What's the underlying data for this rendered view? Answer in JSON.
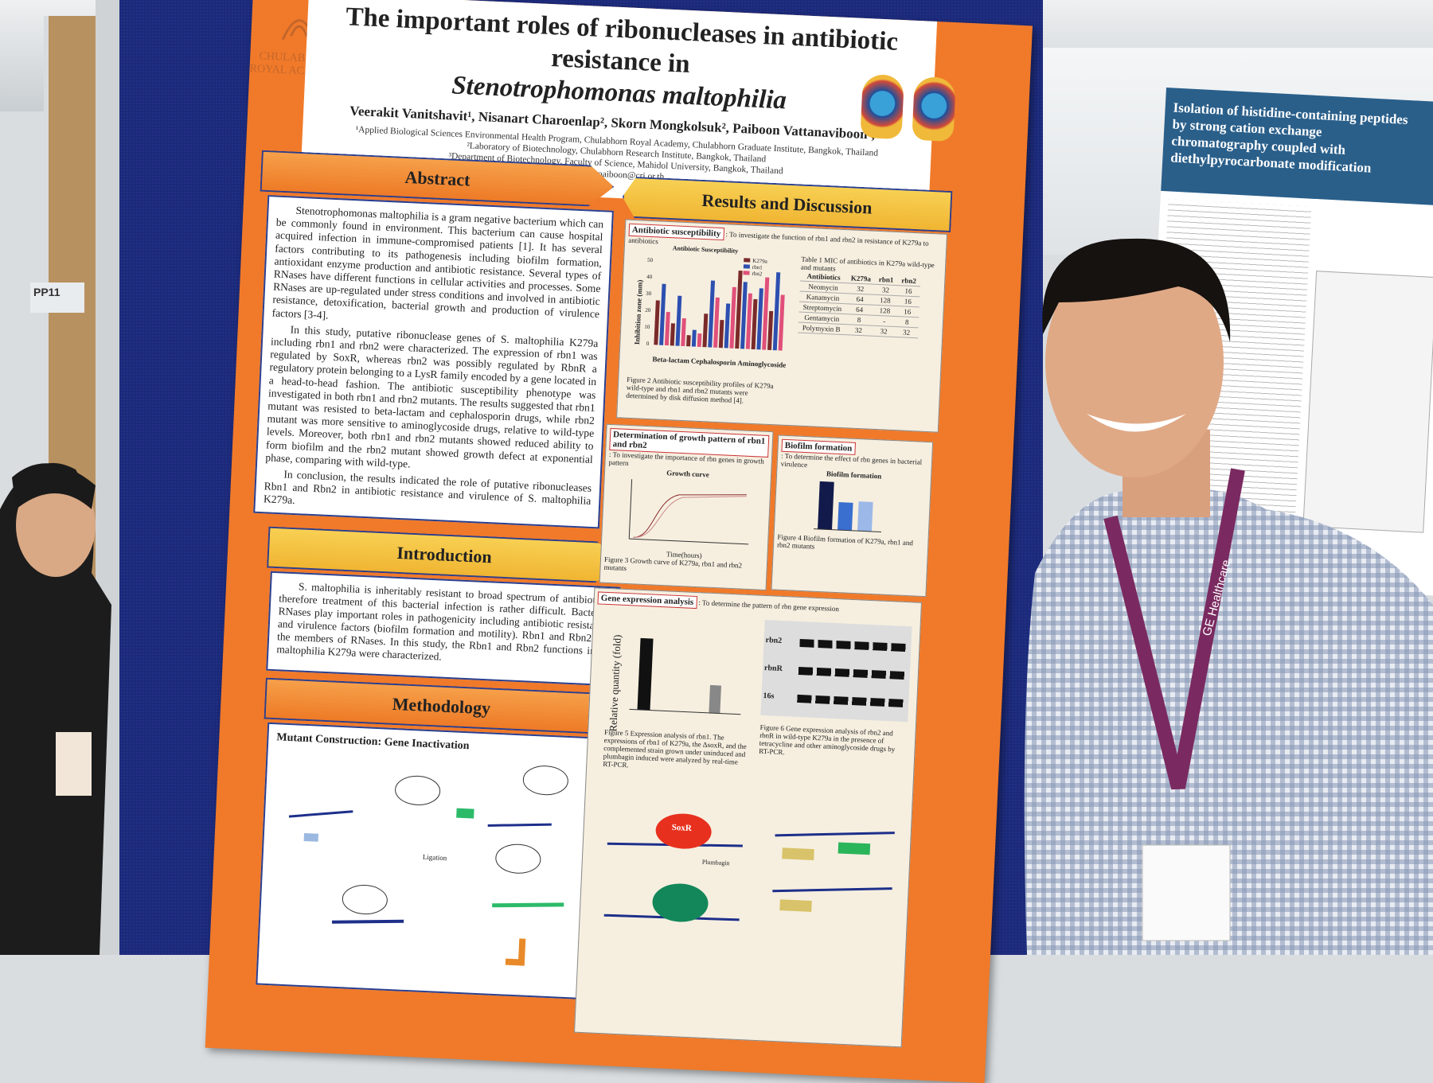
{
  "board": {
    "label": "PP11"
  },
  "header": {
    "logo": "CHULABHORN ROYAL ACADEMY",
    "title_part1": "The important roles of ribonucleases in antibiotic resistance in",
    "title_part2": "Stenotrophomonas maltophilia",
    "authors": "Veerakit Vanitshavit¹, Nisanart Charoenlap², Skorn Mongkolsuk², Paiboon Vattanaviboon¹,²*",
    "affiliations": [
      "¹Applied Biological Sciences Environmental Health Program, Chulabhorn Royal Academy, Chulabhorn Graduate Institute, Bangkok, Thailand",
      "²Laboratory of Biotechnology, Chulabhorn Research Institute, Bangkok, Thailand",
      "³Department of Biotechnology, Faculty of Science, Mahidol University, Bangkok, Thailand"
    ],
    "email": "*Email: paiboon@cri.or.th"
  },
  "abstract": {
    "heading": "Abstract",
    "paragraphs": [
      "Stenotrophomonas maltophilia is a gram negative bacterium which can be commonly found in environment. This bacterium can cause hospital acquired infection in immune-compromised patients [1]. It has several factors contributing to its pathogenesis including biofilm formation, antioxidant enzyme production and antibiotic resistance. Several types of RNases have different functions in cellular activities and processes. Some RNases are up-regulated under stress conditions and involved in antibiotic resistance, detoxification, bacterial growth and production of virulence factors [3-4].",
      "In this study, putative ribonuclease genes of S. maltophilia K279a including rbn1 and rbn2 were characterized. The expression of rbn1 was regulated by SoxR, whereas rbn2 was possibly regulated by RbnR a regulatory protein belonging to a LysR family encoded by a gene located in a head-to-head fashion. The antibiotic susceptibility phenotype was investigated in both rbn1 and rbn2 mutants. The results suggested that rbn1 mutant was resisted to beta-lactam and cephalosporin drugs, while rbn2 mutant was more sensitive to aminoglycoside drugs, relative to wild-type levels. Moreover, both rbn1 and rbn2 mutants showed reduced ability to form biofilm and the rbn2 mutant showed growth defect at exponential phase, comparing with wild-type.",
      "In conclusion, the results indicated the role of putative ribonucleases Rbn1 and Rbn2 in antibiotic resistance and virulence of S. maltophilia K279a."
    ]
  },
  "introduction": {
    "heading": "Introduction",
    "text": "S. maltophilia is inheritably resistant to broad spectrum of antibiotics; therefore treatment of this bacterial infection is rather difficult. Bacterial RNases play important roles in pathogenicity including antibiotic resistance and virulence factors (biofilm formation and motility). Rbn1 and Rbn2 are the members of RNases. In this study, the Rbn1 and Rbn2 functions in S. maltophilia K279a were characterized."
  },
  "methodology": {
    "heading": "Methodology",
    "subheading": "Mutant Construction: Gene Inactivation",
    "ligation": "Ligation"
  },
  "results": {
    "heading": "Results and Discussion",
    "susceptibility": {
      "label": "Antibiotic susceptibility",
      "aim": ": To investigate the function of rbn1 and rbn2 in resistance of K279a to antibiotics",
      "chart_title": "Antibiotic Susceptibility",
      "y_label": "Inhibition zone (mm)",
      "yticks": [
        "0",
        "10",
        "20",
        "30",
        "40",
        "50"
      ],
      "groups": [
        "Beta-lactam",
        "Cephalosporin",
        "Aminoglycoside"
      ],
      "legend": [
        "K279a",
        "rbn1",
        "rbn2"
      ],
      "caption": "Figure 2 Antibiotic susceptibility profiles of K279a wild-type and rbn1 and rbn2 mutants were determined by disk diffusion method [4].",
      "table": {
        "caption": "Table 1 MIC of antibiotics in K279a wild-type and mutants",
        "header": [
          "Antibiotics",
          "K279a",
          "rbn1",
          "rbn2"
        ],
        "rows": [
          [
            "Neomycin",
            "32",
            "32",
            "16"
          ],
          [
            "Kanamycin",
            "64",
            "128",
            "16"
          ],
          [
            "Streptomycin",
            "64",
            "128",
            "16"
          ],
          [
            "Gentamycin",
            "8",
            "-",
            "8"
          ],
          [
            "Polymyxin B",
            "32",
            "32",
            "32"
          ]
        ]
      }
    },
    "growth": {
      "label": "Determination of growth pattern of rbn1 and rbn2",
      "aim": ": To investigate the importance of rbn genes in growth pattern",
      "chart_title": "Growth curve",
      "x_label": "Time(hours)",
      "caption": "Figure 3 Growth curve of K279a, rbn1 and rbn2 mutants"
    },
    "biofilm": {
      "label": "Biofilm formation",
      "aim": ": To determine the effect of rbn genes in bacterial virulence",
      "chart_title": "Biofilm formation",
      "caption": "Figure 4 Biofilm formation of K279a, rbn1 and rbn2 mutants"
    },
    "expression": {
      "label": "Gene expression analysis",
      "aim": ": To determine the pattern of rbn gene expression",
      "y_label": "Relative quantity (fold)",
      "gel_rows": [
        "rbn2",
        "rbnR",
        "16s"
      ],
      "caption5": "Figure 5 Expression analysis of rbn1. The expressions of rbn1 of K279a, the ΔsoxR, and the complemented strain grown under uninduced and plumbagin induced were analyzed by real-time RT-PCR.",
      "caption6": "Figure 6 Gene expression analysis of rbn2 and rbnR in wild-type K279a in the presence of tetracycline and other aminoglycoside drugs by RT-PCR.",
      "protein": "SoxR",
      "inducer": "Plumbagin"
    }
  },
  "second_poster": {
    "title": "Isolation of histidine-containing peptides by strong cation exchange chromatography coupled with diethylpyrocarbonate modification"
  },
  "lanyard": "GE Healthcare"
}
